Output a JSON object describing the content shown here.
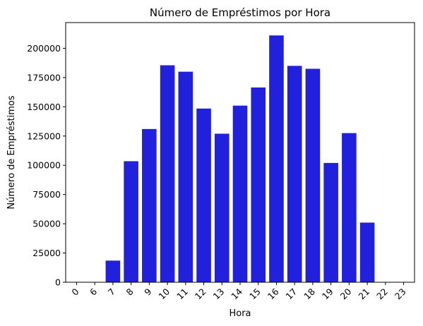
{
  "chart_data": {
    "type": "bar",
    "title": "Número de Empréstimos por Hora",
    "xlabel": "Hora",
    "ylabel": "Número de Empréstimos",
    "categories": [
      "0",
      "6",
      "7",
      "8",
      "9",
      "10",
      "11",
      "12",
      "13",
      "14",
      "15",
      "16",
      "17",
      "18",
      "19",
      "20",
      "21",
      "22",
      "23"
    ],
    "values": [
      0,
      0,
      18500,
      103500,
      131000,
      185500,
      180000,
      148500,
      127000,
      151000,
      166500,
      211000,
      185000,
      182500,
      102000,
      127500,
      51000,
      0,
      0
    ],
    "ylim": [
      0,
      222000
    ],
    "yticks": [
      0,
      25000,
      50000,
      75000,
      100000,
      125000,
      150000,
      175000,
      200000
    ],
    "ytick_labels": [
      "0",
      "25000",
      "50000",
      "75000",
      "100000",
      "125000",
      "150000",
      "175000",
      "200000"
    ],
    "bar_color": "#2020dd",
    "grid": false,
    "xtick_rotation": "45"
  }
}
